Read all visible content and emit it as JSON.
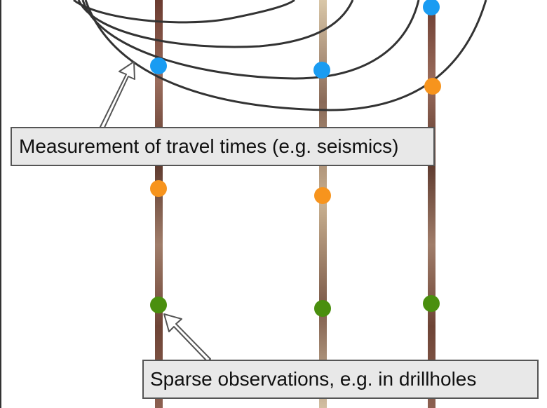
{
  "labels": {
    "seismics": "Measurement of travel times (e.g. seismics)",
    "drillholes": "Sparse observations, e.g. in drillholes"
  },
  "colors": {
    "wave_line": "#333333",
    "arrow_outline": "#555555",
    "label_background": "#e8e8e8",
    "marker_blue": "#1a9cf2",
    "marker_orange": "#f7941d",
    "marker_green": "#4a8f0e",
    "drillhole_core_dark": "#7a4a3c",
    "drillhole_core_light": "#d8c9b0"
  },
  "drillholes": [
    {
      "name": "drillhole-left",
      "core": "dark",
      "markers": [
        "blue",
        "orange",
        "green"
      ]
    },
    {
      "name": "drillhole-middle",
      "core": "light",
      "markers": [
        "blue",
        "orange",
        "green"
      ]
    },
    {
      "name": "drillhole-right",
      "core": "dark",
      "markers": [
        "blue",
        "orange",
        "green"
      ]
    }
  ]
}
